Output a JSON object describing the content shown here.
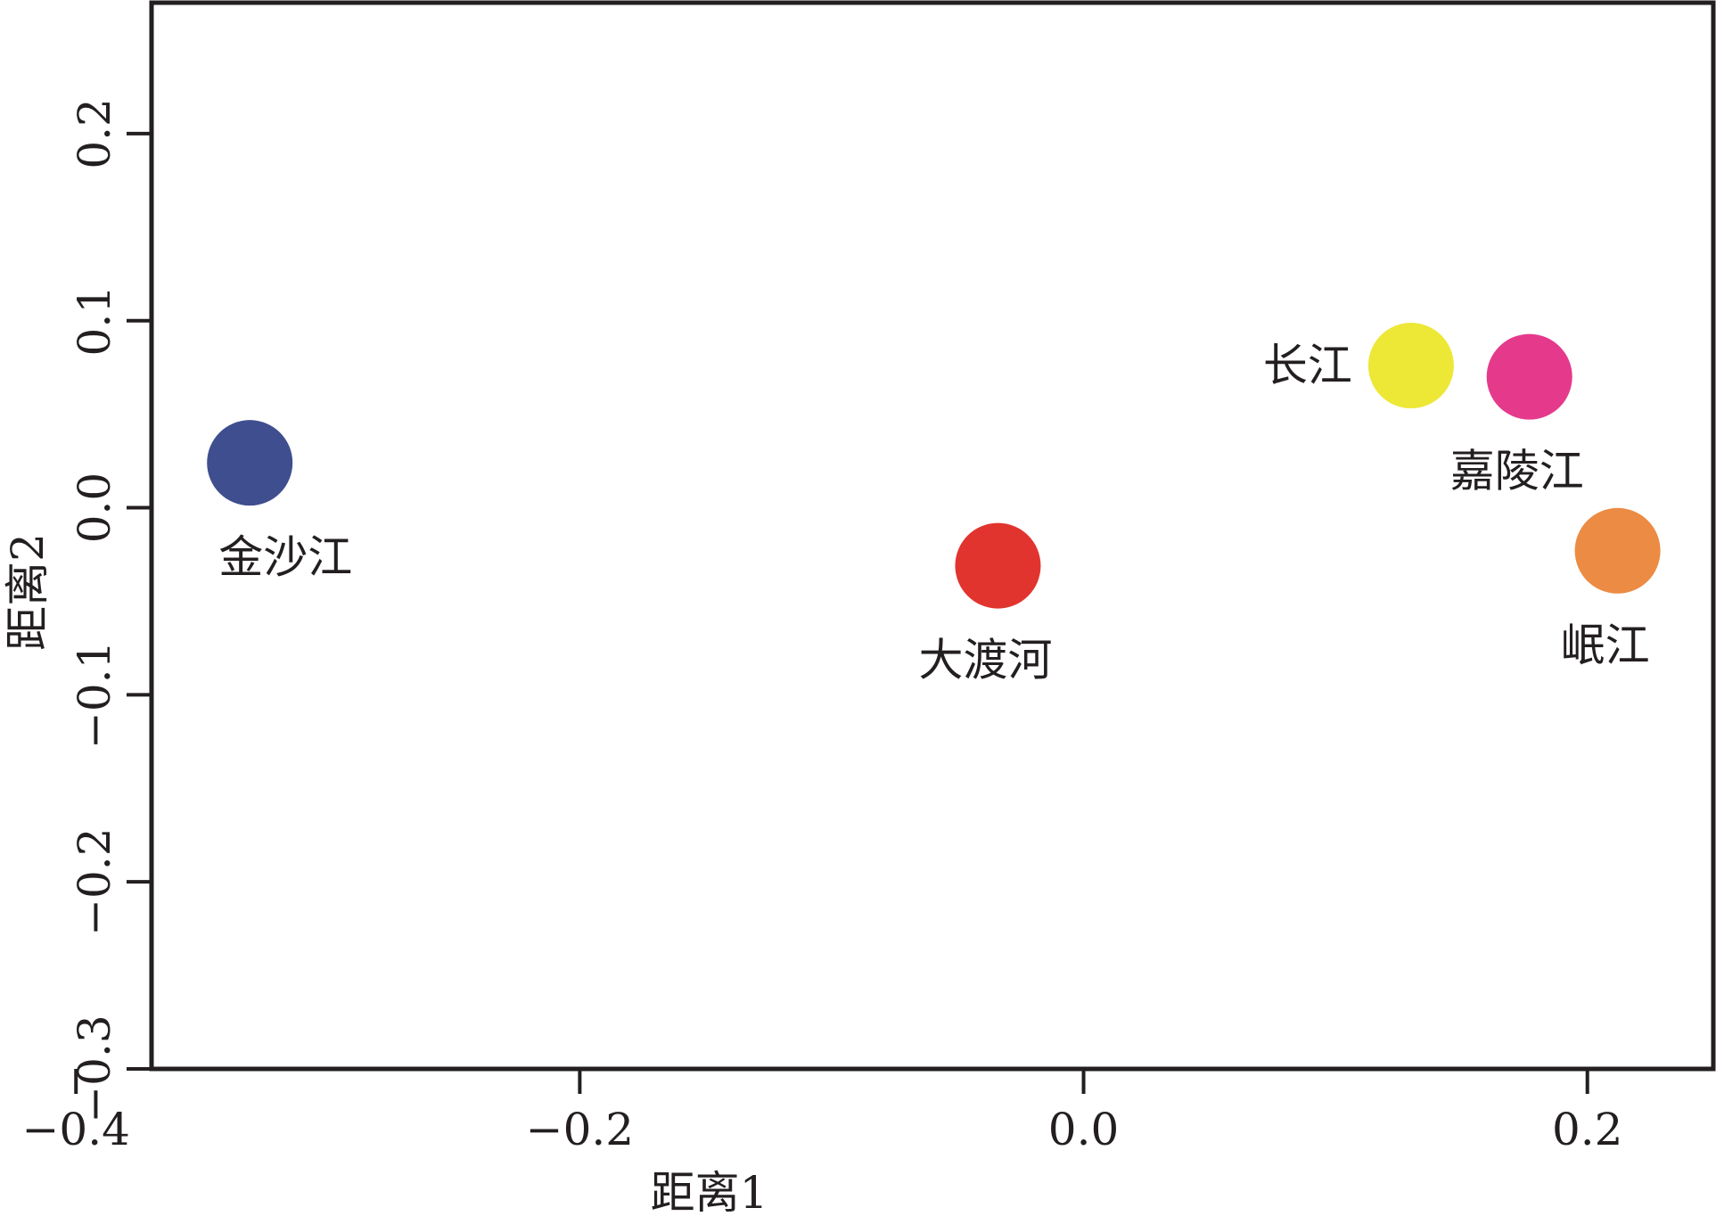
{
  "chart_data": {
    "type": "scatter",
    "xlabel": "距离1",
    "ylabel": "距离2",
    "xlim": [
      -0.37,
      0.25
    ],
    "ylim": [
      -0.3,
      0.27
    ],
    "xticks": [
      {
        "value": -0.4,
        "label": "−0.4"
      },
      {
        "value": -0.2,
        "label": "−0.2"
      },
      {
        "value": 0.0,
        "label": "0.0"
      },
      {
        "value": 0.2,
        "label": "0.2"
      }
    ],
    "yticks": [
      {
        "value": -0.3,
        "label": "−0.3"
      },
      {
        "value": -0.2,
        "label": "−0.2"
      },
      {
        "value": -0.1,
        "label": "−0.1"
      },
      {
        "value": 0.0,
        "label": "0.0"
      },
      {
        "value": 0.1,
        "label": "0.1"
      },
      {
        "value": 0.2,
        "label": "0.2"
      }
    ],
    "grid": false,
    "points": [
      {
        "label": "金沙江",
        "x": -0.331,
        "y": 0.024,
        "color": "#3f4e8f",
        "label_position": "below"
      },
      {
        "label": "大渡河",
        "x": -0.034,
        "y": -0.031,
        "color": "#e2342e",
        "label_position": "below"
      },
      {
        "label": "长江",
        "x": 0.13,
        "y": 0.076,
        "color": "#ede736",
        "label_position": "left"
      },
      {
        "label": "嘉陵江",
        "x": 0.177,
        "y": 0.07,
        "color": "#e5398c",
        "label_position": "below"
      },
      {
        "label": "岷江",
        "x": 0.212,
        "y": -0.023,
        "color": "#ec8b44",
        "label_position": "below"
      }
    ]
  }
}
